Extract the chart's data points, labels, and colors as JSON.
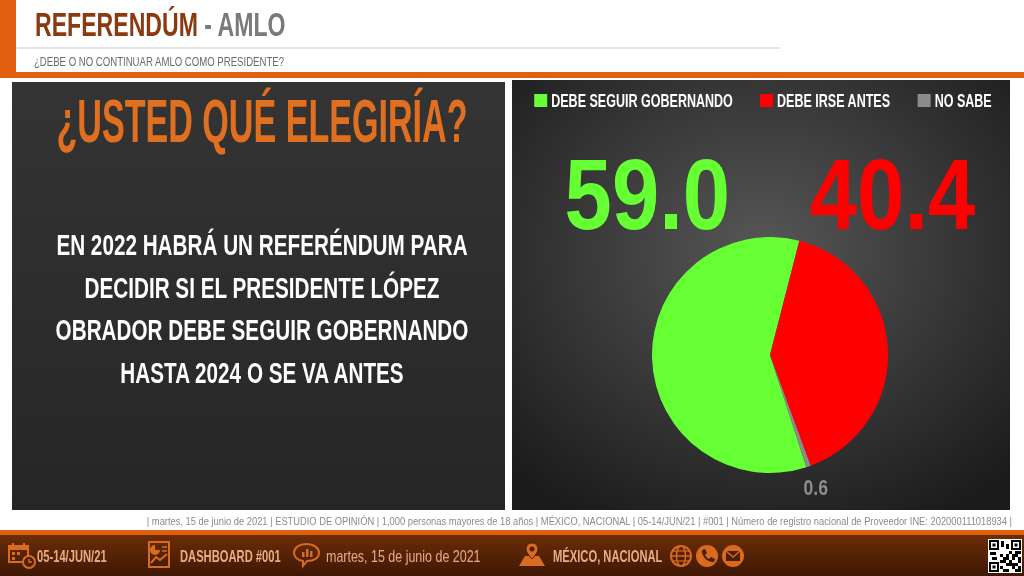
{
  "chart_data": {
    "type": "pie",
    "title": "REFERENDÚM - AMLO",
    "subtitle": "¿DEBE O NO CONTINUAR AMLO COMO PRESIDENTE?",
    "categories": [
      "DEBE SEGUIR GOBERNANDO",
      "DEBE IRSE ANTES",
      "NO SABE"
    ],
    "values": [
      59.0,
      40.4,
      0.6
    ],
    "colors": [
      "#66ff33",
      "#ff0000",
      "#8c8c8c"
    ],
    "value_labels": [
      "59.0",
      "40.4",
      "0.6"
    ],
    "legend": "top",
    "annotations": [
      "¿USTED QUÉ ELEGIRÍA?",
      "EN 2022 HABRÁ UN REFERÉNDUM PARA DECIDIR SI EL PRESIDENTE LÓPEZ OBRADOR DEBE SEGUIR GOBERNANDO HASTA 2024 O SE VA ANTES",
      "| martes, 15 de junio de 2021 | ESTUDIO DE OPINIÓN | 1,000 personas mayores de 18 años | MÉXICO, NACIONAL | 05-14/JUN/21 | #001 | Número de registro nacional de Proveedor INE: 202000111018934 |",
      "05-14/JUN/21",
      "DASHBOARD #001",
      "martes, 15 de junio de 2021",
      "MÉXICO, NACIONAL"
    ]
  }
}
